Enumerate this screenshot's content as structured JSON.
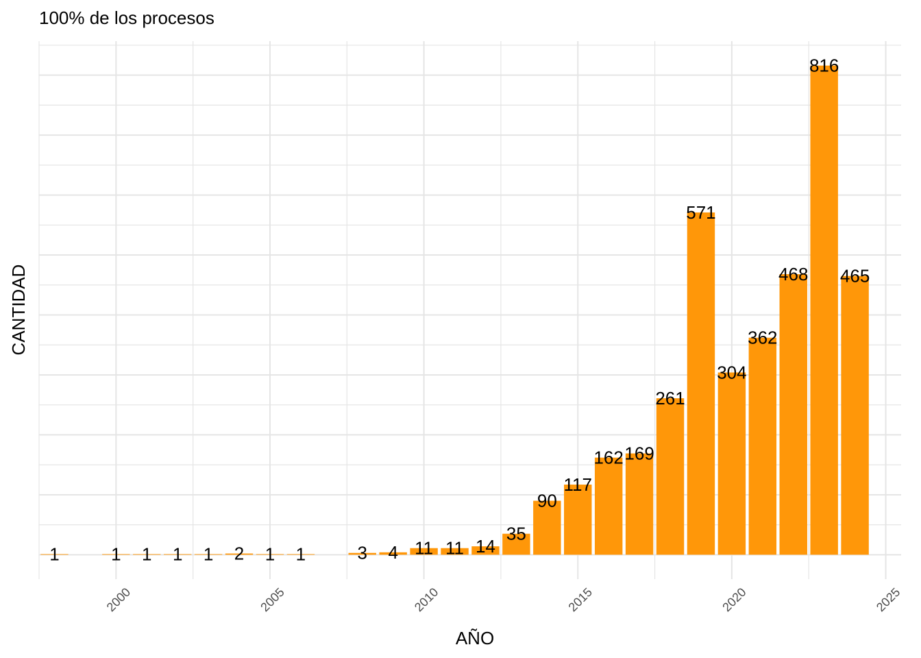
{
  "chart_data": {
    "type": "bar",
    "title": "100% de los procesos",
    "xlabel": "AÑO",
    "ylabel": "CANTIDAD",
    "bar_color": "#FF9709",
    "grid_color": "#e5e5e5",
    "x": [
      1998,
      2000,
      2001,
      2002,
      2003,
      2004,
      2005,
      2006,
      2008,
      2009,
      2010,
      2011,
      2012,
      2013,
      2014,
      2015,
      2016,
      2017,
      2018,
      2019,
      2020,
      2021,
      2022,
      2023,
      2024
    ],
    "values": [
      1,
      1,
      1,
      1,
      1,
      2,
      1,
      1,
      3,
      4,
      11,
      11,
      14,
      35,
      90,
      117,
      162,
      169,
      261,
      571,
      304,
      362,
      468,
      816,
      465
    ],
    "x_ticks": [
      2000,
      2005,
      2010,
      2015,
      2020,
      2025
    ],
    "xlim": [
      1997.5,
      2025.5
    ],
    "ylim": [
      -40.8,
      856.8
    ],
    "y_ticks_shown": false,
    "grid": true
  }
}
